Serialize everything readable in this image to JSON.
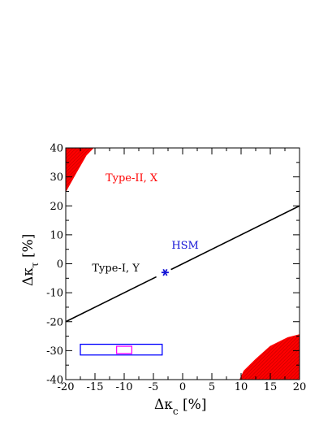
{
  "chart_data": {
    "type": "scatter",
    "xlabel": "Δκ",
    "xlabel_sub": "c",
    "xlabel_unit": " [%]",
    "ylabel": "Δκ",
    "ylabel_sub": "τ",
    "ylabel_unit": " [%]",
    "xlim": [
      -20,
      20
    ],
    "ylim": [
      -40,
      40
    ],
    "xticks": [
      -20,
      -15,
      -10,
      -5,
      0,
      5,
      10,
      15,
      20
    ],
    "yticks": [
      -40,
      -30,
      -20,
      -10,
      0,
      10,
      20,
      30,
      40
    ],
    "grid": false,
    "typeI_line": {
      "label": "Type-I, Y",
      "color": "#000000",
      "x": [
        -20,
        -4.5,
        -2.0,
        20
      ],
      "y": [
        -20,
        -4.5,
        -2.0,
        20
      ],
      "gap_x": [
        -4.5,
        -2.0
      ]
    },
    "typeII_regions": {
      "label": "Type-II, X",
      "color": "#ff0000",
      "upper_left": [
        [
          -20,
          40
        ],
        [
          -15.3,
          40
        ],
        [
          -16.5,
          37.5
        ],
        [
          -18.2,
          31.5
        ],
        [
          -20,
          25
        ]
      ],
      "lower_right": [
        [
          20,
          -24.5
        ],
        [
          18,
          -25.5
        ],
        [
          15,
          -28.5
        ],
        [
          12.5,
          -33
        ],
        [
          10.5,
          -37
        ],
        [
          9.8,
          -40
        ],
        [
          20,
          -40
        ]
      ]
    },
    "hsm": {
      "label": "HSM",
      "color": "#1515d6",
      "point": [
        -3,
        -3
      ]
    },
    "blue_box": {
      "color": "#0000ff",
      "x": [
        -17.5,
        -3.5
      ],
      "y": [
        -31.5,
        -27.8
      ]
    },
    "magenta_box": {
      "color": "#ff00ff",
      "x": [
        -11.3,
        -8.7
      ],
      "y": [
        -31,
        -28.5
      ]
    },
    "annotations": [
      {
        "text": "Type-II, X",
        "x": -13.2,
        "y": 28.5,
        "color": "#ff0000"
      },
      {
        "text": "HSM",
        "x": -1.9,
        "y": 5.2,
        "color": "#1515d6"
      },
      {
        "text": "Type-I, Y",
        "x": -15.5,
        "y": -2.6,
        "color": "#000000"
      }
    ]
  }
}
